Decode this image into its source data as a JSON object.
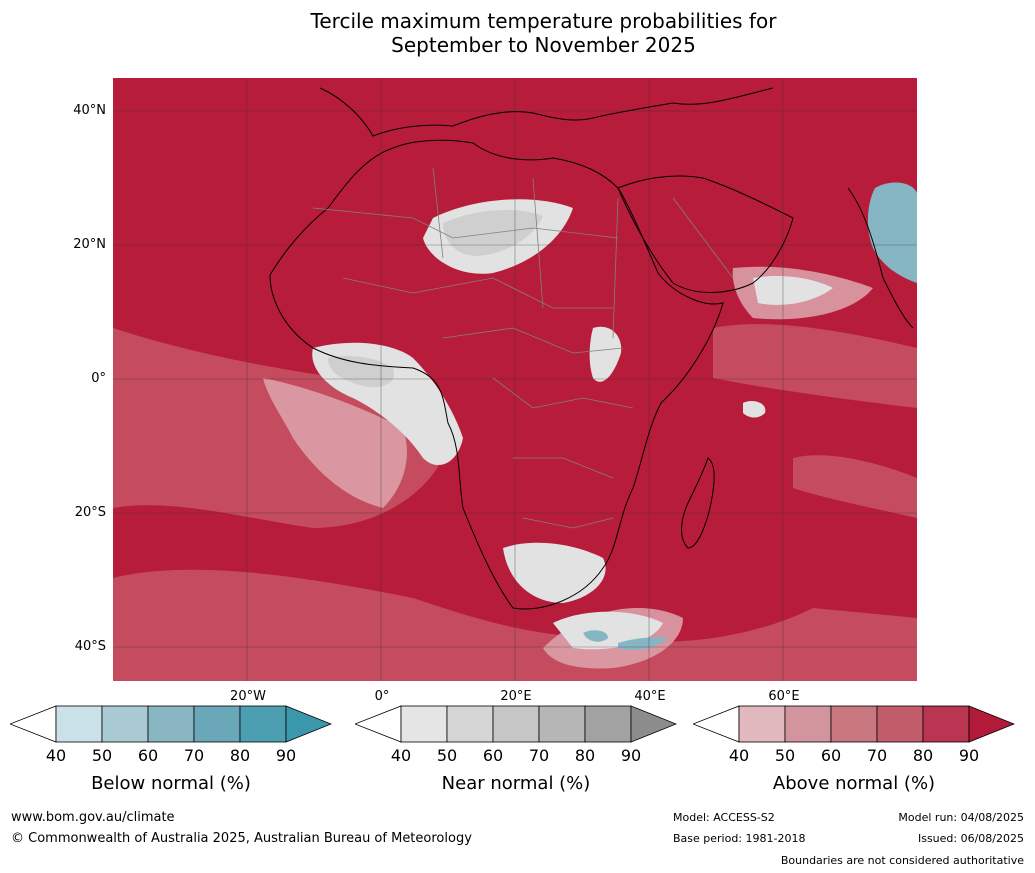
{
  "title": {
    "line1": "Tercile maximum temperature probabilities for",
    "line2": "September to November 2025"
  },
  "map": {
    "lat_labels": [
      "40°N",
      "20°N",
      "0°",
      "20°S",
      "40°S"
    ],
    "lon_labels": [
      "20°W",
      "0°",
      "20°E",
      "40°E",
      "60°E"
    ],
    "colors": {
      "above_90": "#b71c3b",
      "above_70": "#c85566",
      "above_50": "#dba0a8",
      "near": "#e2e2e2",
      "near_dark": "#cfcfcf",
      "below": "#86b6c4",
      "coast": "#000000",
      "border": "#808080",
      "grid": "#333333"
    }
  },
  "legends": [
    {
      "caption": "Below normal (%)",
      "ticks": [
        "40",
        "50",
        "60",
        "70",
        "80",
        "90"
      ],
      "colors": [
        "#cae1e8",
        "#a9cad2",
        "#89b6c2",
        "#6aa8b9",
        "#4b9fb1",
        "#3b97ac"
      ]
    },
    {
      "caption": "Near normal (%)",
      "ticks": [
        "40",
        "50",
        "60",
        "70",
        "80",
        "90"
      ],
      "colors": [
        "#e5e5e5",
        "#d6d6d6",
        "#c6c6c6",
        "#b6b6b6",
        "#a2a2a2",
        "#8c8c8c"
      ]
    },
    {
      "caption": "Above normal (%)",
      "ticks": [
        "40",
        "50",
        "60",
        "70",
        "80",
        "90"
      ],
      "colors": [
        "#e2b8bf",
        "#d3959d",
        "#c97880",
        "#c35c6a",
        "#b93551",
        "#b21a3a"
      ]
    }
  ],
  "footer": {
    "website": "www.bom.gov.au/climate",
    "copyright": "© Commonwealth of Australia 2025, Australian Bureau of Meteorology",
    "model": "Model: ACCESS-S2",
    "base_period": "Base period: 1981-2018",
    "model_run": "Model run: 04/08/2025",
    "issued": "Issued: 06/08/2025",
    "disclaimer": "Boundaries are not considered authoritative"
  }
}
